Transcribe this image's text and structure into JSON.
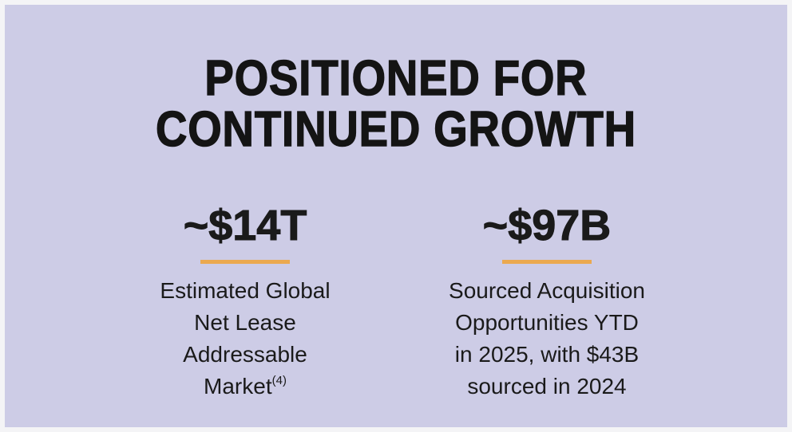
{
  "title": [
    "POSITIONED FOR",
    "CONTINUED GROWTH"
  ],
  "stats": [
    {
      "value": "~$14T",
      "description": [
        "Estimated Global",
        "Net Lease",
        "Addressable",
        "Market"
      ],
      "footnote": "(4)"
    },
    {
      "value": "~$97B",
      "description": [
        "Sourced Acquisition",
        "Opportunities YTD",
        "in 2025, with $43B",
        "sourced in 2024"
      ]
    }
  ]
}
